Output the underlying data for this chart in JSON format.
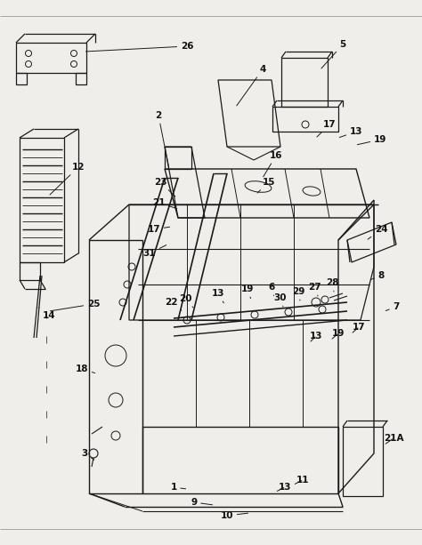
{
  "bg_color": "#f0eeea",
  "line_color": "#1a1a1a",
  "label_color": "#111111",
  "fig_width": 4.74,
  "fig_height": 6.13,
  "dpi": 100,
  "lw": 0.9
}
